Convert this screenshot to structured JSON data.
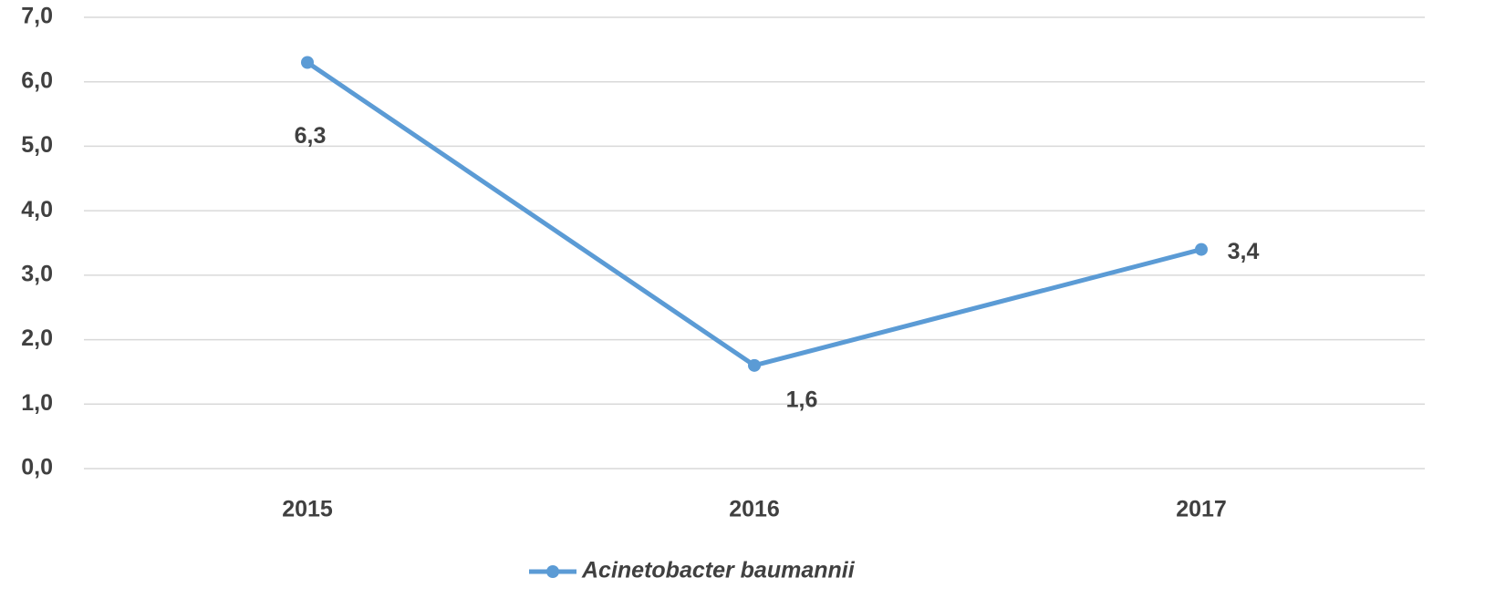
{
  "chart_data": {
    "type": "line",
    "categories": [
      "2015",
      "2016",
      "2017"
    ],
    "series": [
      {
        "name": "Acinetobacter baumannii",
        "color": "#5b9bd5",
        "values": [
          6.3,
          1.6,
          3.4
        ],
        "value_labels": [
          "6,3",
          "1,6",
          "3,4"
        ]
      }
    ],
    "ylim": [
      0,
      7
    ],
    "yticks": [
      {
        "value": 0,
        "label": "0,0"
      },
      {
        "value": 1,
        "label": "1,0"
      },
      {
        "value": 2,
        "label": "2,0"
      },
      {
        "value": 3,
        "label": "3,0"
      },
      {
        "value": 4,
        "label": "4,0"
      },
      {
        "value": 5,
        "label": "5,0"
      },
      {
        "value": 6,
        "label": "6,0"
      },
      {
        "value": 7,
        "label": "7,0"
      }
    ],
    "grid": true,
    "legend": "bottom"
  }
}
